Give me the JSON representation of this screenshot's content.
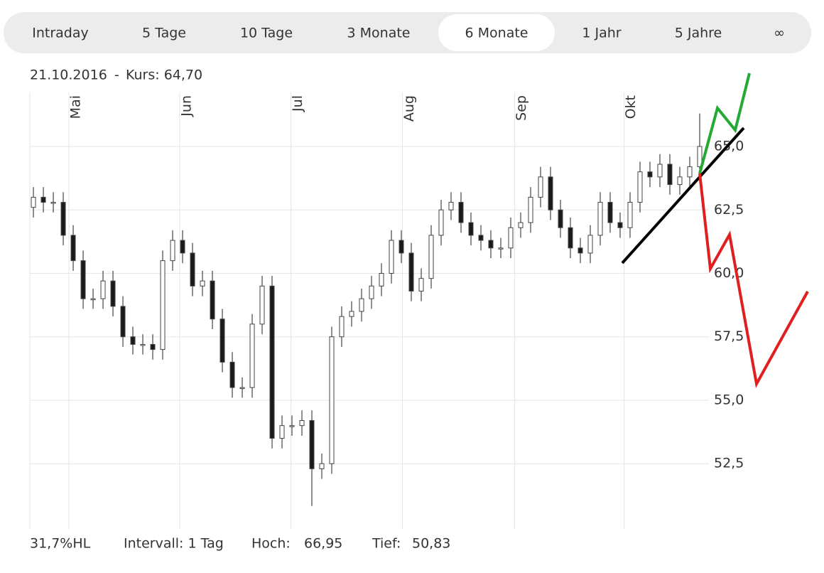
{
  "tabs": {
    "items": [
      "Intraday",
      "5 Tage",
      "10 Tage",
      "3 Monate",
      "6 Monate",
      "1 Jahr",
      "5 Jahre",
      "∞"
    ],
    "active": 4
  },
  "header": {
    "date": "21.10.2016",
    "separator": "-",
    "price": "Kurs: 64,70"
  },
  "chart_data": {
    "type": "candlestick",
    "x": [
      0,
      1,
      2,
      3,
      4,
      5,
      6,
      7,
      8,
      9,
      10,
      11,
      12,
      13,
      14,
      15,
      16,
      17,
      18,
      19,
      20,
      21,
      22,
      23,
      24,
      25,
      26,
      27,
      28,
      29,
      30,
      31,
      32,
      33,
      34,
      35,
      36,
      37,
      38,
      39,
      40,
      41,
      42,
      43,
      44,
      45,
      46,
      47,
      48,
      49,
      50,
      51,
      52,
      53,
      54,
      55,
      56,
      57,
      58,
      59,
      60,
      61,
      62,
      63,
      64,
      65,
      66,
      67
    ],
    "open": [
      62.6,
      63.0,
      62.8,
      62.8,
      61.5,
      60.5,
      59.0,
      59.0,
      59.7,
      58.7,
      57.5,
      57.2,
      57.2,
      57.0,
      60.5,
      61.3,
      60.8,
      59.5,
      59.7,
      58.2,
      56.5,
      55.5,
      55.5,
      58.0,
      59.5,
      53.5,
      54.0,
      54.0,
      54.2,
      52.3,
      52.5,
      57.5,
      58.3,
      58.5,
      59.0,
      59.5,
      60.0,
      61.3,
      60.8,
      59.3,
      59.8,
      61.5,
      62.5,
      62.8,
      62.0,
      61.5,
      61.3,
      61.0,
      61.0,
      61.8,
      62.0,
      63.0,
      63.8,
      62.5,
      61.8,
      61.0,
      60.8,
      61.5,
      62.8,
      62.0,
      61.8,
      62.8,
      64.0,
      63.8,
      64.3,
      63.5,
      63.8,
      64.2
    ],
    "high": [
      63.4,
      63.4,
      63.2,
      63.2,
      61.9,
      60.9,
      59.4,
      60.1,
      60.1,
      59.1,
      57.9,
      57.6,
      57.6,
      60.9,
      61.7,
      61.7,
      61.2,
      60.1,
      60.1,
      58.6,
      56.9,
      55.9,
      58.4,
      59.9,
      59.9,
      54.4,
      54.4,
      54.6,
      54.6,
      52.9,
      57.9,
      58.7,
      58.9,
      59.4,
      59.9,
      60.4,
      61.7,
      61.7,
      61.2,
      60.2,
      61.9,
      62.9,
      63.2,
      63.2,
      62.4,
      61.9,
      61.7,
      61.4,
      62.2,
      62.4,
      63.4,
      64.2,
      64.2,
      62.9,
      62.2,
      61.4,
      61.9,
      63.2,
      63.2,
      62.4,
      63.2,
      64.4,
      64.4,
      64.7,
      64.7,
      64.2,
      64.6,
      66.3
    ],
    "low": [
      62.2,
      62.4,
      62.4,
      61.1,
      60.1,
      58.6,
      58.6,
      58.6,
      58.3,
      57.1,
      56.8,
      56.8,
      56.6,
      56.6,
      60.1,
      60.4,
      59.1,
      59.1,
      57.8,
      56.1,
      55.1,
      55.1,
      55.1,
      57.6,
      53.1,
      53.1,
      53.6,
      53.6,
      50.83,
      51.9,
      52.1,
      57.1,
      57.9,
      58.1,
      58.6,
      59.1,
      59.6,
      60.4,
      58.9,
      58.9,
      59.4,
      61.1,
      62.1,
      61.6,
      61.1,
      60.9,
      60.6,
      60.6,
      60.6,
      61.4,
      61.6,
      62.6,
      62.1,
      61.4,
      60.6,
      60.4,
      60.4,
      61.1,
      61.6,
      61.4,
      61.4,
      62.4,
      63.4,
      63.4,
      63.1,
      63.1,
      63.4,
      63.8
    ],
    "close": [
      63.0,
      62.8,
      62.8,
      61.5,
      60.5,
      59.0,
      59.0,
      59.7,
      58.7,
      57.5,
      57.2,
      57.2,
      57.0,
      60.5,
      61.3,
      60.8,
      59.5,
      59.7,
      58.2,
      56.5,
      55.5,
      55.5,
      58.0,
      59.5,
      53.5,
      54.0,
      54.0,
      54.2,
      52.3,
      52.5,
      57.5,
      58.3,
      58.5,
      59.0,
      59.5,
      60.0,
      61.3,
      60.8,
      59.3,
      59.8,
      61.5,
      62.5,
      62.8,
      62.0,
      61.5,
      61.3,
      61.0,
      61.0,
      61.8,
      62.0,
      63.0,
      63.8,
      62.5,
      61.8,
      61.0,
      60.8,
      61.5,
      62.8,
      62.0,
      61.8,
      62.8,
      64.0,
      63.8,
      64.3,
      63.5,
      63.8,
      64.2,
      65.0
    ],
    "xlim": [
      -0.36,
      67.93
    ],
    "xticks": [
      {
        "value": 3.57,
        "label": "Mai"
      },
      {
        "value": 14.7,
        "label": "Jun"
      },
      {
        "value": 25.9,
        "label": "Jul"
      },
      {
        "value": 37.1,
        "label": "Aug"
      },
      {
        "value": 48.4,
        "label": "Sep"
      },
      {
        "value": 59.4,
        "label": "Okt"
      }
    ],
    "ylim": [
      49.9,
      67.13
    ],
    "yticks": [
      {
        "value": 52.5,
        "label": "52,5"
      },
      {
        "value": 55,
        "label": "55,0"
      },
      {
        "value": 57.5,
        "label": "57,5"
      },
      {
        "value": 60,
        "label": "60,0"
      },
      {
        "value": 62.5,
        "label": "62,5"
      },
      {
        "value": 65,
        "label": "65,0"
      }
    ],
    "grid": true,
    "up_color": "#ffffff",
    "down_color": "#1a1a1a",
    "outline_color": "#444444"
  },
  "footer": {
    "range": "31,7%HL",
    "interval": "Intervall: 1 Tag",
    "high_label": "Hoch:",
    "high": "66,95",
    "low_label": "Tief:",
    "low": "50,83"
  }
}
